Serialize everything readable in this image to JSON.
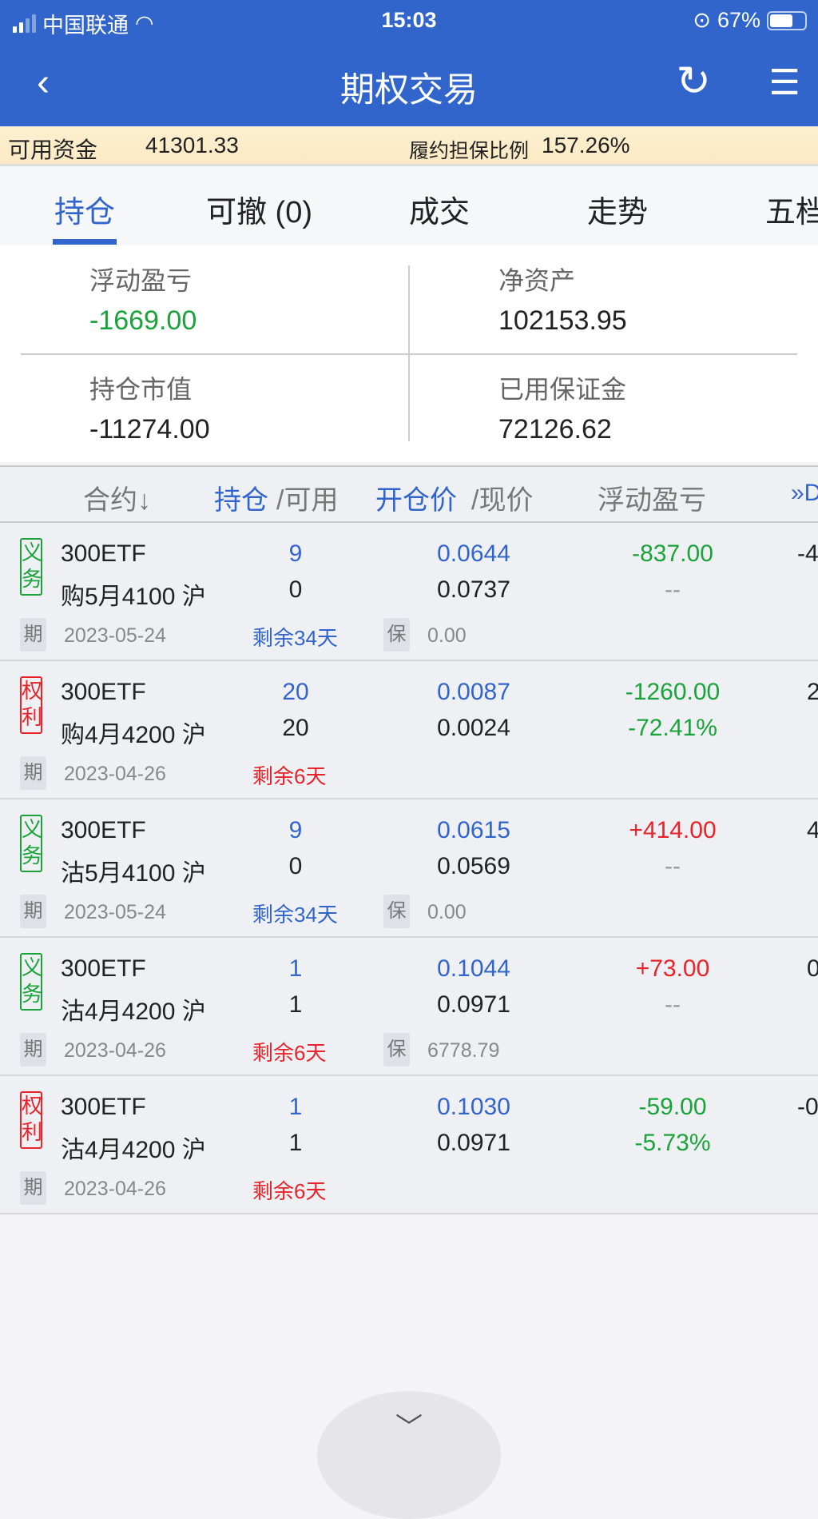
{
  "status_bar": {
    "carrier": "中国联通",
    "time": "15:03",
    "battery": "67%",
    "battery_level": 0.67
  },
  "nav": {
    "title": "期权交易",
    "back_icon": "‹",
    "refresh_icon": "↻",
    "menu_icon": "☰"
  },
  "fund_bar": {
    "available_label": "可用资金",
    "available_value": "41301.33",
    "ratio_label": "履约担保比例",
    "ratio_value": "157.26%"
  },
  "tabs": [
    {
      "label": "持仓"
    },
    {
      "label": "可撤 (0)"
    },
    {
      "label": "成交"
    },
    {
      "label": "走势"
    },
    {
      "label": "五档"
    }
  ],
  "summary": {
    "floating_pl": {
      "label": "浮动盈亏",
      "value": "-1669.00"
    },
    "net_assets": {
      "label": "净资产",
      "value": "102153.95"
    },
    "market_value": {
      "label": "持仓市值",
      "value": "-11274.00"
    },
    "margin_used": {
      "label": "已用保证金",
      "value": "72126.62"
    }
  },
  "table_header": {
    "contract": "合约↓",
    "position": "持仓",
    "available": "/可用",
    "open_price": "开仓价",
    "current_price": "/现价",
    "floating_pl": "浮动盈亏",
    "more": "»D"
  },
  "colors": {
    "brand": "#3165cc",
    "profit": "#e8232a",
    "loss": "#1aa33a"
  },
  "rows": [
    {
      "type": "义务",
      "type_a": "义",
      "type_b": "务",
      "name": "300ETF",
      "contract": "购5月4100 沪",
      "position": "9",
      "available": "0",
      "open_price": "0.0644",
      "current_price": "0.0737",
      "pl": "-837.00",
      "pl_pct": "--",
      "extra": "-4",
      "period_label": "期",
      "expiry": "2023-05-24",
      "remaining": "剩余34天",
      "margin_label": "保",
      "margin": "0.00"
    },
    {
      "type": "权利",
      "type_a": "权",
      "type_b": "利",
      "name": "300ETF",
      "contract": "购4月4200 沪",
      "position": "20",
      "available": "20",
      "open_price": "0.0087",
      "current_price": "0.0024",
      "pl": "-1260.00",
      "pl_pct": "-72.41%",
      "extra": "2",
      "period_label": "期",
      "expiry": "2023-04-26",
      "remaining": "剩余6天"
    },
    {
      "type": "义务",
      "type_a": "义",
      "type_b": "务",
      "name": "300ETF",
      "contract": "沽5月4100 沪",
      "position": "9",
      "available": "0",
      "open_price": "0.0615",
      "current_price": "0.0569",
      "pl": "+414.00",
      "pl_pct": "--",
      "extra": "4",
      "period_label": "期",
      "expiry": "2023-05-24",
      "remaining": "剩余34天",
      "margin_label": "保",
      "margin": "0.00"
    },
    {
      "type": "义务",
      "type_a": "义",
      "type_b": "务",
      "name": "300ETF",
      "contract": "沽4月4200 沪",
      "position": "1",
      "available": "1",
      "open_price": "0.1044",
      "current_price": "0.0971",
      "pl": "+73.00",
      "pl_pct": "--",
      "extra": "0",
      "period_label": "期",
      "expiry": "2023-04-26",
      "remaining": "剩余6天",
      "margin_label": "保",
      "margin": "6778.79"
    },
    {
      "type": "权利",
      "type_a": "权",
      "type_b": "利",
      "name": "300ETF",
      "contract": "沽4月4200 沪",
      "position": "1",
      "available": "1",
      "open_price": "0.1030",
      "current_price": "0.0971",
      "pl": "-59.00",
      "pl_pct": "-5.73%",
      "extra": "-0",
      "period_label": "期",
      "expiry": "2023-04-26",
      "remaining": "剩余6天"
    }
  ],
  "bottom": {
    "collapse_icon": "﹀"
  }
}
